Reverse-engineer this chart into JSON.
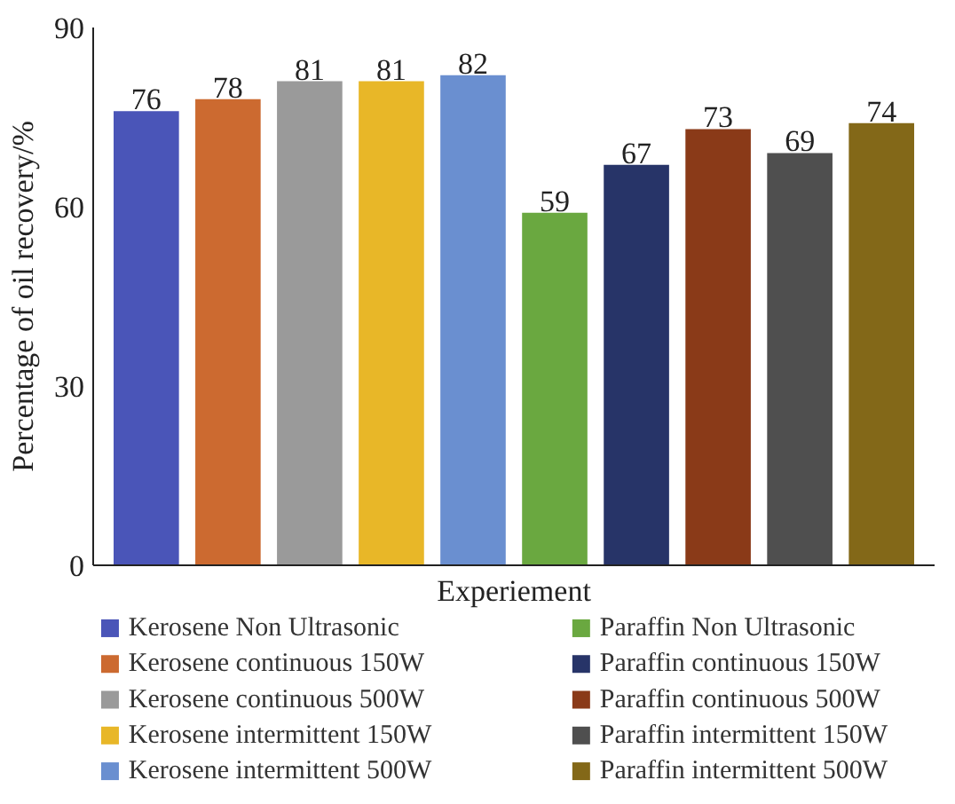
{
  "chart_data": {
    "type": "bar",
    "xlabel": "Experiement",
    "ylabel": "Percentage of oil recovery/%",
    "categories": [
      null,
      null,
      null,
      null,
      null,
      null,
      null,
      null,
      null,
      null
    ],
    "ylim": [
      0,
      90
    ],
    "yticks": [
      0,
      30,
      60,
      90
    ],
    "grid": false,
    "legend": "bottom",
    "data_labels": true,
    "series": [
      {
        "name": "Kerosene Non Ultrasonic",
        "color": "#4a55b8",
        "values": [
          76,
          null,
          null,
          null,
          null,
          null,
          null,
          null,
          null,
          null
        ]
      },
      {
        "name": "Kerosene continuous 150W",
        "color": "#cc6a30",
        "values": [
          null,
          78,
          null,
          null,
          null,
          null,
          null,
          null,
          null,
          null
        ]
      },
      {
        "name": "Kerosene continuous 500W",
        "color": "#9a9a9a",
        "values": [
          null,
          null,
          81,
          null,
          null,
          null,
          null,
          null,
          null,
          null
        ]
      },
      {
        "name": "Kerosene intermittent 150W",
        "color": "#e8b728",
        "values": [
          null,
          null,
          null,
          81,
          null,
          null,
          null,
          null,
          null,
          null
        ]
      },
      {
        "name": "Kerosene intermittent 500W",
        "color": "#6a8fd0",
        "values": [
          null,
          null,
          null,
          null,
          82,
          null,
          null,
          null,
          null,
          null
        ]
      },
      {
        "name": "Paraffin Non Ultrasonic",
        "color": "#6aa840",
        "values": [
          null,
          null,
          null,
          null,
          null,
          59,
          null,
          null,
          null,
          null
        ]
      },
      {
        "name": "Paraffin continuous 150W",
        "color": "#273468",
        "values": [
          null,
          null,
          null,
          null,
          null,
          null,
          67,
          null,
          null,
          null
        ]
      },
      {
        "name": "Paraffin continuous 500W",
        "color": "#8a3a18",
        "values": [
          null,
          null,
          null,
          null,
          null,
          null,
          null,
          73,
          null,
          null
        ]
      },
      {
        "name": "Paraffin intermittent 150W",
        "color": "#4f4f4f",
        "values": [
          null,
          null,
          null,
          null,
          null,
          null,
          null,
          null,
          69,
          null
        ]
      },
      {
        "name": "Paraffin intermittent 500W",
        "color": "#836818",
        "values": [
          null,
          null,
          null,
          null,
          null,
          null,
          null,
          null,
          null,
          74
        ]
      }
    ]
  }
}
